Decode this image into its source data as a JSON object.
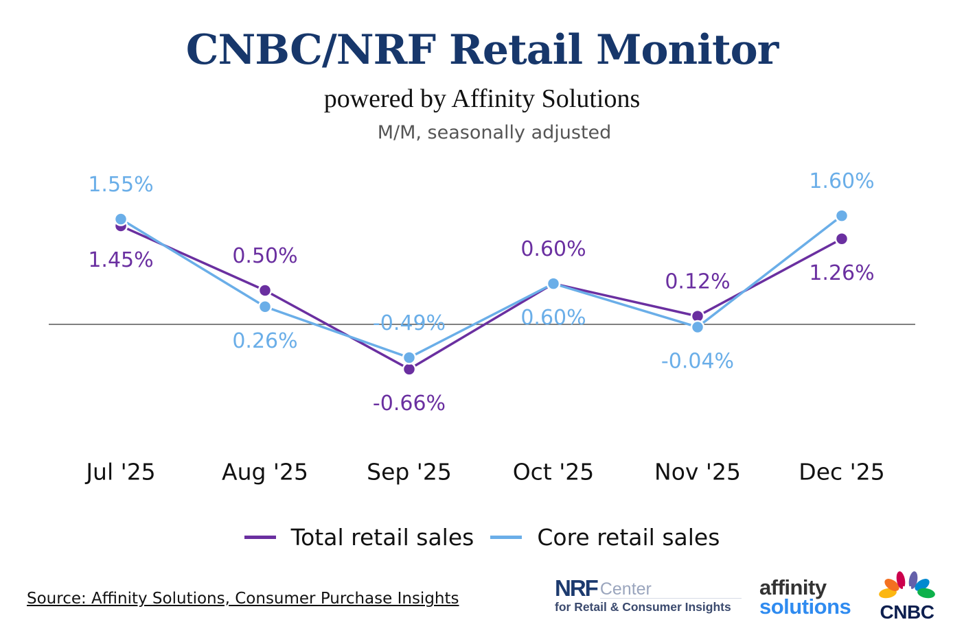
{
  "header": {
    "title": "CNBC/NRF Retail Monitor",
    "subtitle": "powered by Affinity Solutions",
    "note": "M/M, seasonally adjusted"
  },
  "chart_data": {
    "type": "line",
    "categories": [
      "Jul '25",
      "Aug '25",
      "Sep '25",
      "Oct '25",
      "Nov '25",
      "Dec '25"
    ],
    "series": [
      {
        "name": "Total retail sales",
        "color": "#6a2fa0",
        "values": [
          1.45,
          0.5,
          -0.66,
          0.6,
          0.12,
          1.26
        ],
        "labels": [
          "1.45%",
          "0.50%",
          "-0.66%",
          "0.60%",
          "0.12%",
          "1.26%"
        ]
      },
      {
        "name": "Core retail sales",
        "color": "#6aaee8",
        "values": [
          1.55,
          0.26,
          -0.49,
          0.6,
          -0.04,
          1.6
        ],
        "labels": [
          "1.55%",
          "0.26%",
          "-0.49%",
          "0.60%",
          "-0.04%",
          "1.60%"
        ]
      }
    ],
    "unit": "%",
    "zero_line": true,
    "grid": false,
    "legend_position": "bottom"
  },
  "footer": {
    "source": "Source: Affinity Solutions, Consumer Purchase Insights",
    "logos": {
      "nrf": {
        "word": "NRF",
        "center": "Center",
        "sub": "for Retail & Consumer Insights"
      },
      "affinity": {
        "line1": "affinity",
        "line2": "solutions"
      },
      "cnbc": {
        "word": "CNBC"
      }
    }
  }
}
